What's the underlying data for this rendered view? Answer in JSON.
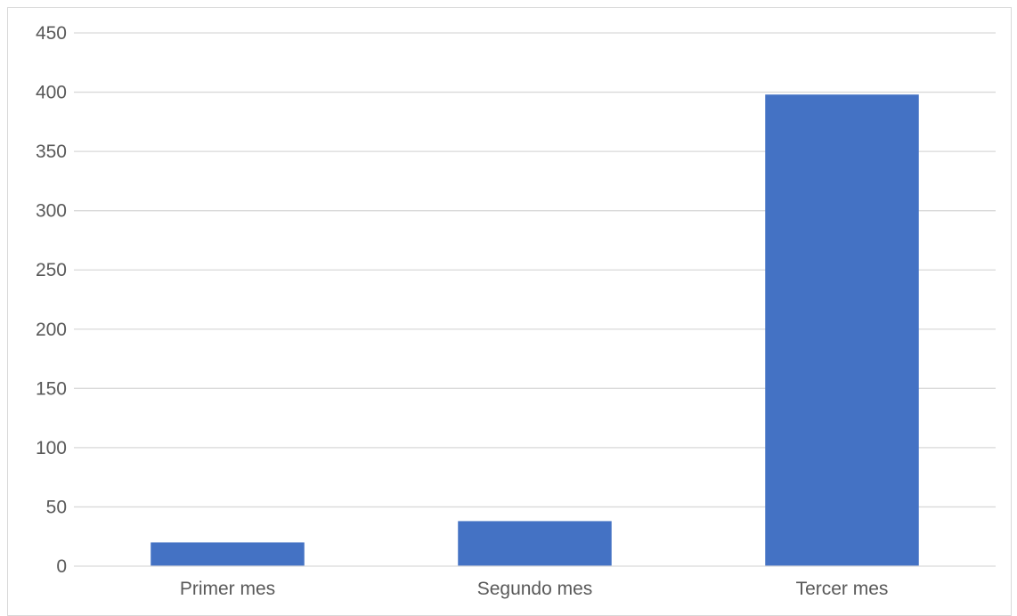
{
  "chart_data": {
    "type": "bar",
    "title": "",
    "xlabel": "",
    "ylabel": "",
    "categories": [
      "Primer mes",
      "Segundo mes",
      "Tercer mes"
    ],
    "values": [
      20,
      38,
      398
    ],
    "ylim": [
      0,
      450
    ],
    "yticks": [
      0,
      50,
      100,
      150,
      200,
      250,
      300,
      350,
      400,
      450
    ],
    "ytick_labels": [
      "0",
      "50",
      "100",
      "150",
      "200",
      "250",
      "300",
      "350",
      "400",
      "450"
    ],
    "grid": true,
    "legend": "none",
    "bar_color": "#4472c4"
  }
}
